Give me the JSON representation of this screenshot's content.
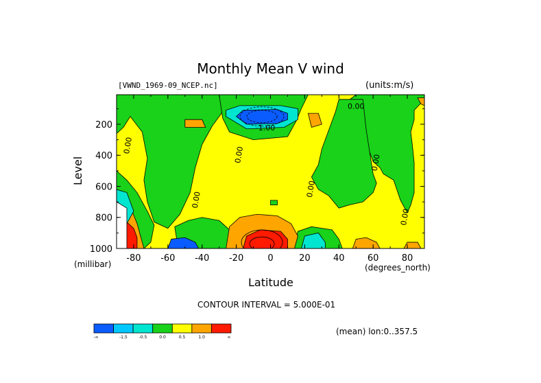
{
  "chart_data": {
    "type": "heatmap",
    "title": "Monthly Mean V wind",
    "dataset_label": "[VWND_1969-09_NCEP.nc]",
    "units_label": "(units:m/s)",
    "xlabel": "Latitude",
    "ylabel": "Level",
    "x_units": "(degrees_north)",
    "y_units": "(millibar)",
    "xlim": [
      -90,
      90
    ],
    "ylim": [
      1000,
      10
    ],
    "x_ticks": [
      -80,
      -60,
      -40,
      -20,
      0,
      20,
      40,
      60,
      80
    ],
    "y_ticks": [
      200,
      400,
      600,
      800,
      1000
    ],
    "contour_interval_text": "CONTOUR INTERVAL = 5.000E-01",
    "mean_text": "(mean) lon:0..357.5",
    "contour_labels": [
      {
        "text": "0.00",
        "lat": 50,
        "level": 100
      },
      {
        "text": "-1.00",
        "lat": -3,
        "level": 240
      },
      {
        "text": "0.00",
        "lat": -82,
        "level": 340
      },
      {
        "text": "0.00",
        "lat": -17,
        "level": 400
      },
      {
        "text": "0.00",
        "lat": 63,
        "level": 450
      },
      {
        "text": "0.00",
        "lat": 25,
        "level": 620
      },
      {
        "text": "0.00",
        "lat": -42,
        "level": 690
      },
      {
        "text": "0.00",
        "lat": 80,
        "level": 800
      }
    ],
    "colorbar": {
      "colors": [
        "#0a5cff",
        "#00c8ff",
        "#00e5d0",
        "#19d219",
        "#ffff00",
        "#ffa500",
        "#ff1a00"
      ],
      "labels": [
        "-∞",
        "-1.5",
        "-0.5",
        "0.0",
        "0.5",
        "1.0",
        "∞"
      ]
    }
  }
}
